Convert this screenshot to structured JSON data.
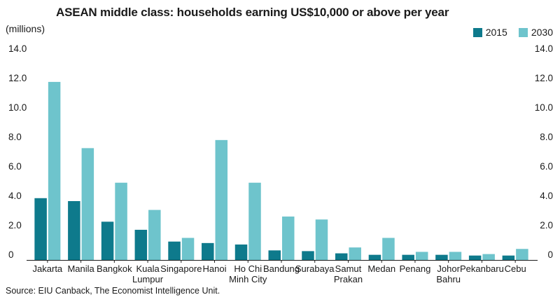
{
  "chart_data": {
    "type": "bar",
    "title": "ASEAN middle class: households earning US$10,000 or above per year",
    "ylabel": "(millions)",
    "source": "Source: EIU Canback, The Economist Intelligence Unit.",
    "categories": [
      [
        "Jakarta"
      ],
      [
        "Manila"
      ],
      [
        "Bangkok"
      ],
      [
        "Kuala",
        "Lumpur"
      ],
      [
        "Singapore"
      ],
      [
        "Hanoi"
      ],
      [
        "Ho Chi",
        "Minh City"
      ],
      [
        "Bandung"
      ],
      [
        "Surabaya"
      ],
      [
        "Samut",
        "Prakan"
      ],
      [
        "Medan"
      ],
      [
        "Penang"
      ],
      [
        "Johor",
        "Bahru"
      ],
      [
        "Pekanbaru"
      ],
      [
        "Cebu"
      ]
    ],
    "series": [
      {
        "name": "2015",
        "color": "#0e7a8c",
        "values": [
          4.2,
          4.0,
          2.6,
          2.05,
          1.25,
          1.15,
          1.05,
          0.65,
          0.6,
          0.45,
          0.35,
          0.35,
          0.35,
          0.3,
          0.3
        ]
      },
      {
        "name": "2030",
        "color": "#6ec4cc",
        "values": [
          12.1,
          7.6,
          5.25,
          3.4,
          1.5,
          8.15,
          5.25,
          2.95,
          2.75,
          0.85,
          1.5,
          0.55,
          0.55,
          0.4,
          0.75
        ]
      }
    ],
    "yticks": [
      "14.0",
      "12.0",
      "10.0",
      "8.0",
      "6.0",
      "4.0",
      "2.0",
      "0"
    ],
    "ylim": [
      0,
      14
    ],
    "grid": false,
    "legend_position": "top-right"
  }
}
